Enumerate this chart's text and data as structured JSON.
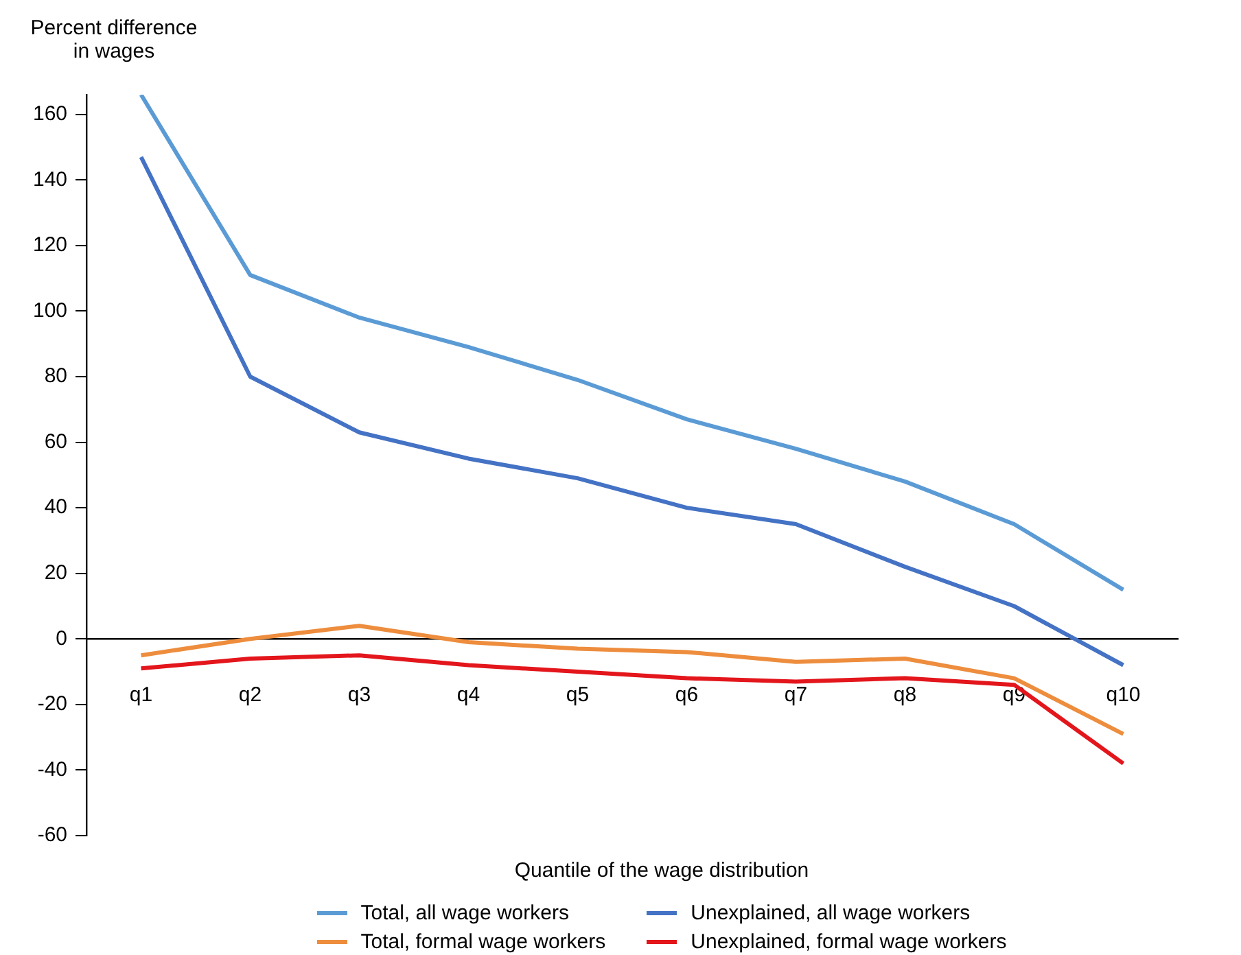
{
  "chart_data": {
    "type": "line",
    "ylabel": "Percent difference\nin wages",
    "xlabel": "Quantile of the wage distribution",
    "categories": [
      "q1",
      "q2",
      "q3",
      "q4",
      "q5",
      "q6",
      "q7",
      "q8",
      "q9",
      "q10"
    ],
    "series": [
      {
        "name": "Total, all wage workers",
        "color": "#5b9bd5",
        "values": [
          166,
          111,
          98,
          89,
          79,
          67,
          58,
          48,
          35,
          15
        ]
      },
      {
        "name": "Unexplained, all wage workers",
        "color": "#4472c4",
        "values": [
          147,
          80,
          63,
          55,
          49,
          40,
          35,
          22,
          10,
          -8
        ]
      },
      {
        "name": "Total, formal wage workers",
        "color": "#ed8d3d",
        "values": [
          -5,
          0,
          4,
          -1,
          -3,
          -4,
          -7,
          -6,
          -12,
          -29
        ]
      },
      {
        "name": "Unexplained, formal wage workers",
        "color": "#e3161c",
        "values": [
          -9,
          -6,
          -5,
          -8,
          -10,
          -12,
          -13,
          -12,
          -14,
          -38
        ]
      }
    ],
    "ylim": [
      -60,
      166
    ],
    "yticks": [
      -60,
      -40,
      -20,
      0,
      20,
      40,
      60,
      80,
      100,
      120,
      140,
      160
    ],
    "grid": false,
    "legend": "bottom",
    "marker": "none",
    "line_style": "solid"
  }
}
